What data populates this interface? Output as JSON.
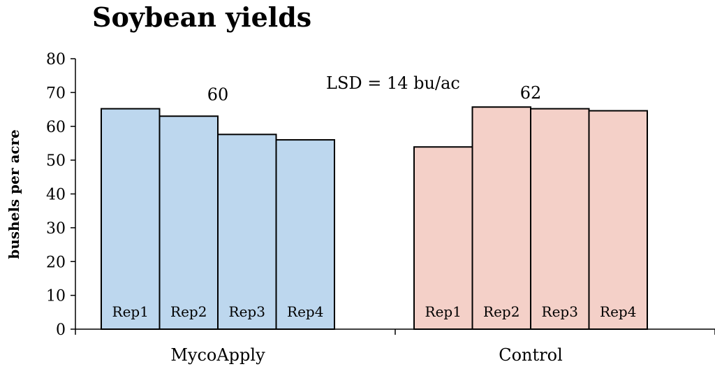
{
  "chart_data": {
    "type": "bar",
    "title": "Soybean yields",
    "ylabel": "bushels per acre",
    "xlabel": "",
    "ylim": [
      0,
      80
    ],
    "yticks": [
      0,
      10,
      20,
      30,
      40,
      50,
      60,
      70,
      80
    ],
    "grid": false,
    "groups": [
      {
        "name": "MycoApply",
        "mean_label": "60",
        "color": "#bdd7ee",
        "bars": [
          {
            "label": "Rep1",
            "value": 65.2
          },
          {
            "label": "Rep2",
            "value": 63.0
          },
          {
            "label": "Rep3",
            "value": 57.6
          },
          {
            "label": "Rep4",
            "value": 56.0
          }
        ]
      },
      {
        "name": "Control",
        "mean_label": "62",
        "color": "#f4d0c8",
        "bars": [
          {
            "label": "Rep1",
            "value": 53.9
          },
          {
            "label": "Rep2",
            "value": 65.7
          },
          {
            "label": "Rep3",
            "value": 65.2
          },
          {
            "label": "Rep4",
            "value": 64.6
          }
        ]
      }
    ],
    "annotation": "LSD = 14 bu/ac"
  }
}
